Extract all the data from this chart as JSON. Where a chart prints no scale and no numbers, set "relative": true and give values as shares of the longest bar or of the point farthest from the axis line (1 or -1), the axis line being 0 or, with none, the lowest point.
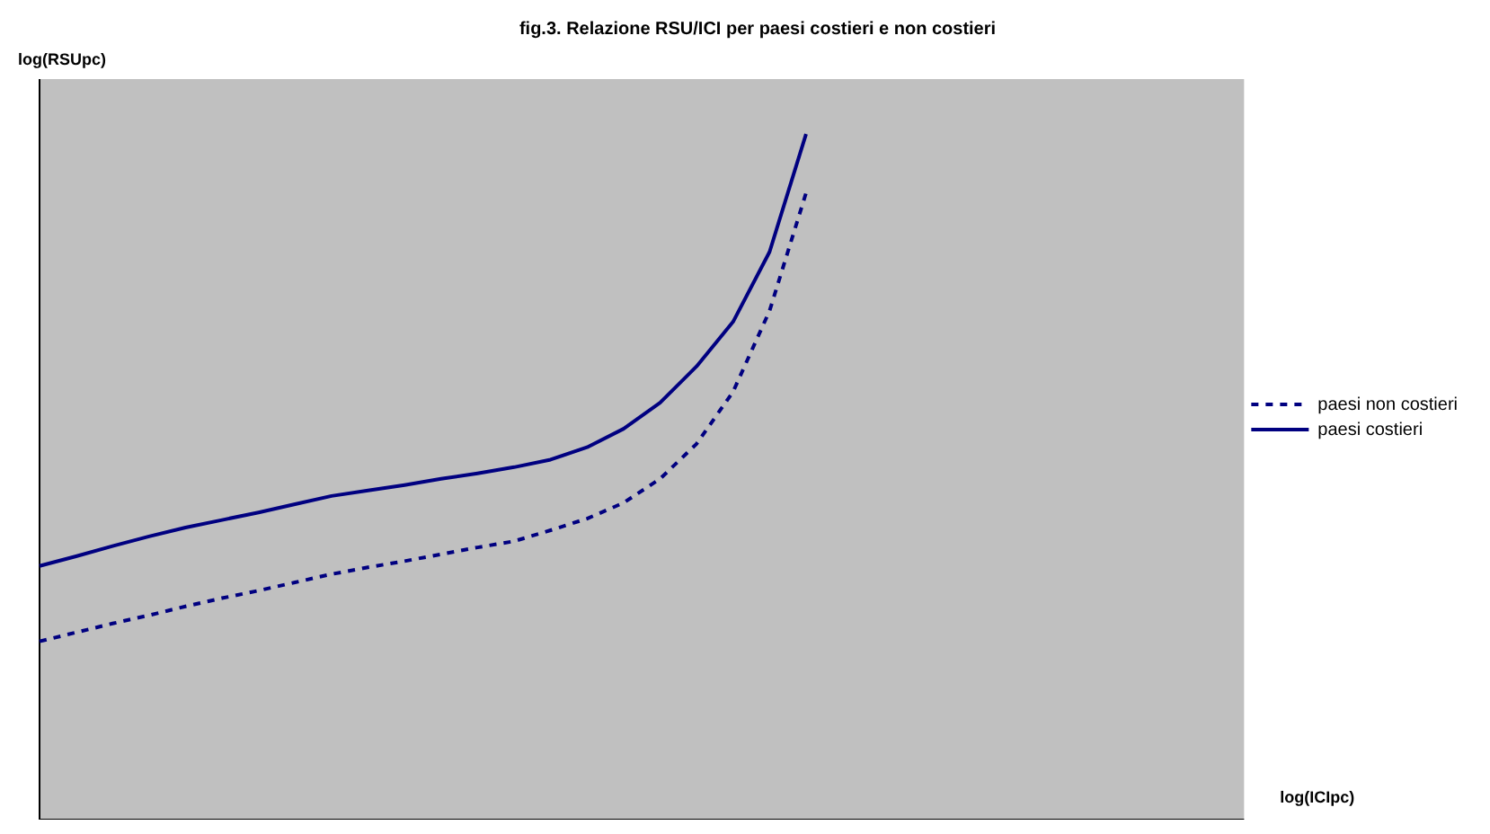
{
  "chart_data": {
    "type": "line",
    "title": "fig.3. Relazione RSU/ICI per paesi costieri e non costieri",
    "xlabel": "log(ICIpc)",
    "ylabel": "log(RSUpc)",
    "relative": true,
    "tick_labels": false,
    "grid": false,
    "legend": "right",
    "marker": "none",
    "categories": [
      null,
      null,
      null,
      null,
      null,
      null,
      null,
      null,
      null,
      null,
      null,
      null,
      null,
      null,
      null,
      null,
      null,
      null,
      null,
      null,
      null,
      null,
      null,
      null,
      null,
      null,
      null,
      null,
      null,
      null,
      null,
      null,
      null,
      null
    ],
    "series": [
      {
        "name": "paesi non costieri",
        "color": "#000080",
        "line_style": "dashed",
        "values": [
          0.26,
          0.273,
          0.286,
          0.298,
          0.311,
          0.323,
          0.334,
          0.346,
          0.358,
          0.368,
          0.377,
          0.387,
          0.397,
          0.406,
          0.422,
          0.439,
          0.462,
          0.497,
          0.548,
          0.624,
          0.742,
          0.914,
          null,
          null,
          null,
          null,
          null,
          null,
          null,
          null,
          null,
          null,
          null,
          null
        ]
      },
      {
        "name": "paesi costieri",
        "color": "#000080",
        "line_style": "solid",
        "values": [
          0.37,
          0.384,
          0.399,
          0.413,
          0.426,
          0.437,
          0.448,
          0.46,
          0.472,
          0.48,
          0.488,
          0.497,
          0.505,
          0.514,
          0.525,
          0.543,
          0.57,
          0.608,
          0.661,
          0.726,
          0.828,
          1.0,
          null,
          null,
          null,
          null,
          null,
          null,
          null,
          null,
          null,
          null,
          null,
          null
        ]
      }
    ]
  }
}
